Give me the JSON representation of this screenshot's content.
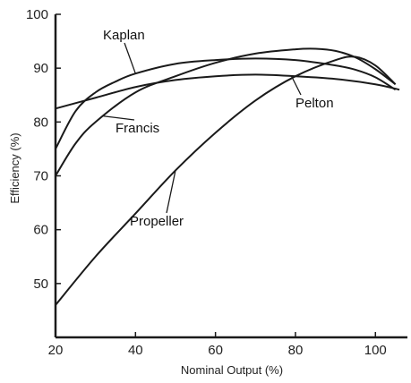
{
  "chart_data": {
    "type": "line",
    "title": "",
    "xlabel": "Nominal Output (%)",
    "ylabel": "Efficiency (%)",
    "xlim": [
      20,
      108
    ],
    "ylim": [
      40,
      100
    ],
    "xticks": [
      20,
      40,
      60,
      80,
      100
    ],
    "yticks": [
      50,
      60,
      70,
      80,
      90,
      100
    ],
    "grid": false,
    "legend": "none",
    "series": [
      {
        "name": "Kaplan",
        "x": [
          20,
          25,
          30,
          35,
          40,
          50,
          60,
          70,
          80,
          90,
          95,
          100,
          105
        ],
        "y": [
          75,
          82,
          85.5,
          87.5,
          89,
          90.8,
          91.5,
          91.8,
          91.5,
          90.5,
          89.7,
          88.3,
          86
        ]
      },
      {
        "name": "Francis",
        "x": [
          20,
          25,
          30,
          40,
          50,
          60,
          70,
          80,
          85,
          90,
          95,
          100,
          105
        ],
        "y": [
          70,
          76,
          80,
          85.5,
          88.5,
          91,
          92.7,
          93.5,
          93.6,
          93.2,
          92,
          89.8,
          87
        ]
      },
      {
        "name": "Pelton",
        "x": [
          20,
          30,
          40,
          50,
          60,
          70,
          80,
          90,
          100,
          106
        ],
        "y": [
          82.5,
          84.5,
          86.5,
          87.8,
          88.5,
          88.8,
          88.5,
          88,
          87,
          86
        ]
      },
      {
        "name": "Propeller",
        "x": [
          20,
          30,
          40,
          50,
          60,
          70,
          80,
          90,
          95,
          100,
          105
        ],
        "y": [
          46,
          55,
          63,
          71,
          78,
          84,
          88.5,
          91.5,
          92.1,
          90.5,
          87
        ]
      }
    ],
    "labels": {
      "kaplan": "Kaplan",
      "francis": "Francis",
      "pelton": "Pelton",
      "propeller": "Propeller"
    }
  }
}
